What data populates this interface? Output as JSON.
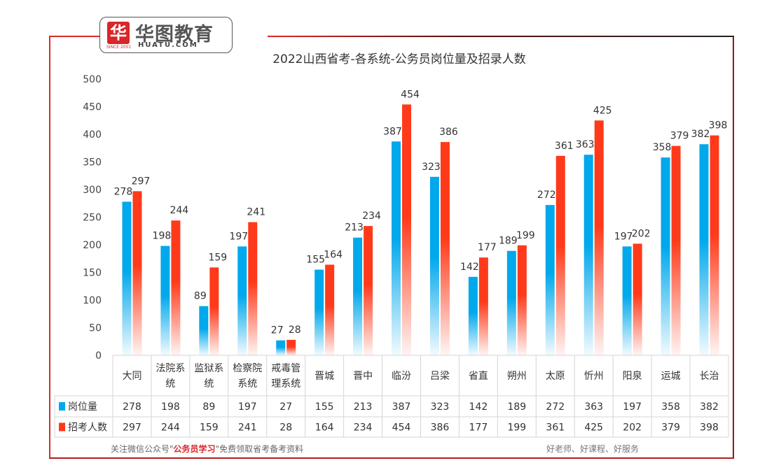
{
  "logo": {
    "mark": "华",
    "name": "华图教育",
    "url": "HUATU.COM",
    "since": "SINCE 2001"
  },
  "chart_data": {
    "type": "bar",
    "title": "2022山西省考-各系统-公务员岗位量及招录人数",
    "categories": [
      "大同",
      "法院系统",
      "监狱系统",
      "检察院系统",
      "戒毒管理系统",
      "晋城",
      "晋中",
      "临汾",
      "吕梁",
      "省直",
      "朔州",
      "太原",
      "忻州",
      "阳泉",
      "运城",
      "长治"
    ],
    "category_lines": [
      [
        "大同"
      ],
      [
        "法院系",
        "统"
      ],
      [
        "监狱系",
        "统"
      ],
      [
        "检察院",
        "系统"
      ],
      [
        "戒毒管",
        "理系统"
      ],
      [
        "晋城"
      ],
      [
        "晋中"
      ],
      [
        "临汾"
      ],
      [
        "吕梁"
      ],
      [
        "省直"
      ],
      [
        "朔州"
      ],
      [
        "太原"
      ],
      [
        "忻州"
      ],
      [
        "阳泉"
      ],
      [
        "运城"
      ],
      [
        "长治"
      ]
    ],
    "series": [
      {
        "name": "岗位量",
        "color": "#00a8ec",
        "values": [
          278,
          198,
          89,
          197,
          27,
          155,
          213,
          387,
          323,
          142,
          189,
          272,
          363,
          197,
          358,
          382
        ]
      },
      {
        "name": "招考人数",
        "color": "#ff3a1a",
        "values": [
          297,
          244,
          159,
          241,
          28,
          164,
          234,
          454,
          386,
          177,
          199,
          361,
          425,
          202,
          379,
          398
        ]
      }
    ],
    "ylim": [
      0,
      500
    ],
    "yticks": [
      "0",
      "50",
      "100",
      "150",
      "200",
      "250",
      "300",
      "350",
      "400",
      "450",
      "500"
    ],
    "data_table": true
  },
  "footer": {
    "left_prefix": "关注微信公众号\"",
    "left_highlight": "公务员学习",
    "left_suffix": "\"免费领取省考备考资料",
    "right": "好老师、好课程、好服务"
  }
}
